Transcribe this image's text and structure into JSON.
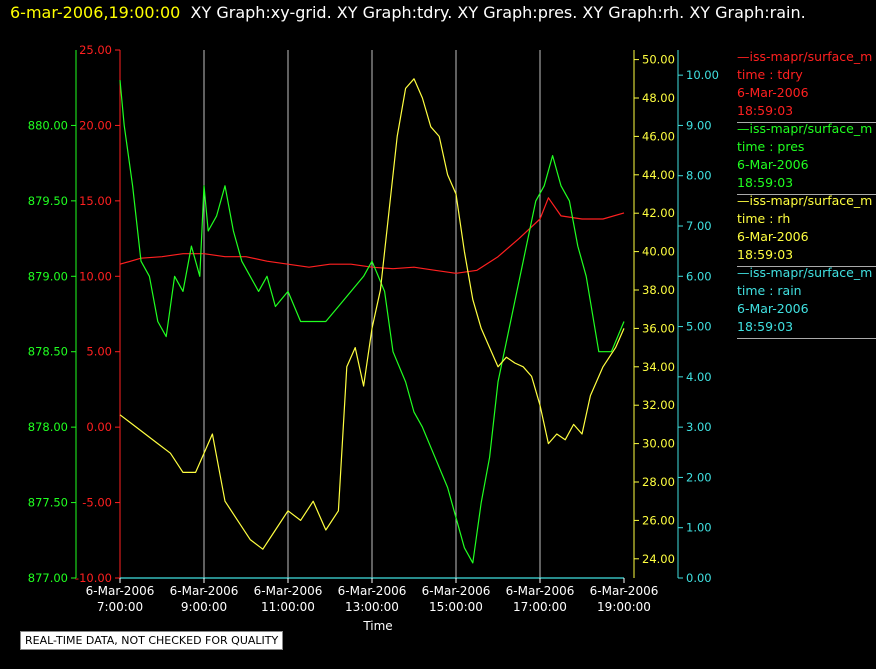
{
  "title": {
    "timestamp": "6-mar-2006,19:00:00",
    "graphs": "XY Graph:xy-grid.  XY Graph:tdry.  XY Graph:pres.  XY Graph:rh.  XY Graph:rain."
  },
  "legend": [
    {
      "name": "—iss-mapr/surface_m",
      "var": "time : tdry",
      "date": "6-Mar-2006",
      "time": "18:59:03",
      "color": "#ff2020"
    },
    {
      "name": "—iss-mapr/surface_m",
      "var": "time : pres",
      "date": "6-Mar-2006",
      "time": "18:59:03",
      "color": "#20ff20"
    },
    {
      "name": "—iss-mapr/surface_m",
      "var": "time : rh",
      "date": "6-Mar-2006",
      "time": "18:59:03",
      "color": "#ffff40"
    },
    {
      "name": "—iss-mapr/surface_m",
      "var": "time : rain",
      "date": "6-Mar-2006",
      "time": "18:59:03",
      "color": "#40e0e0"
    }
  ],
  "disclaimer": "REAL-TIME DATA, NOT CHECKED FOR QUALITY",
  "chart_data": {
    "type": "line",
    "xlabel": "Time",
    "x_ticks": [
      {
        "date": "6-Mar-2006",
        "time": "7:00:00",
        "hour": 7
      },
      {
        "date": "6-Mar-2006",
        "time": "9:00:00",
        "hour": 9
      },
      {
        "date": "6-Mar-2006",
        "time": "11:00:00",
        "hour": 11
      },
      {
        "date": "6-Mar-2006",
        "time": "13:00:00",
        "hour": 13
      },
      {
        "date": "6-Mar-2006",
        "time": "15:00:00",
        "hour": 15
      },
      {
        "date": "6-Mar-2006",
        "time": "17:00:00",
        "hour": 17
      },
      {
        "date": "6-Mar-2006",
        "time": "19:00:00",
        "hour": 19
      }
    ],
    "xlim": [
      7,
      19
    ],
    "grid": true,
    "axes": [
      {
        "id": "pres",
        "color": "#20ff20",
        "ylim": [
          877.0,
          880.5
        ],
        "ticks": [
          "877.00",
          "877.50",
          "878.00",
          "878.50",
          "879.00",
          "879.50",
          "880.00"
        ]
      },
      {
        "id": "tdry",
        "color": "#ff2020",
        "ylim": [
          -10,
          25
        ],
        "ticks": [
          "-10.00",
          "-5.00",
          "0.00",
          "5.00",
          "10.00",
          "15.00",
          "20.00",
          "25.00"
        ]
      },
      {
        "id": "rh",
        "color": "#ffff40",
        "ylim": [
          23,
          50.5
        ],
        "ticks": [
          "24.00",
          "26.00",
          "28.00",
          "30.00",
          "32.00",
          "34.00",
          "36.00",
          "38.00",
          "40.00",
          "42.00",
          "44.00",
          "46.00",
          "48.00",
          "50.00"
        ]
      },
      {
        "id": "rain",
        "color": "#40e0e0",
        "ylim": [
          0,
          10.5
        ],
        "ticks": [
          "0.00",
          "1.00",
          "2.00",
          "3.00",
          "4.00",
          "5.00",
          "6.00",
          "7.00",
          "8.00",
          "9.00",
          "10.00"
        ]
      }
    ],
    "series": [
      {
        "name": "tdry",
        "axis": "tdry",
        "color": "#ff2020",
        "x": [
          7.0,
          7.5,
          8.0,
          8.5,
          9.0,
          9.5,
          10.0,
          10.5,
          11.0,
          11.5,
          12.0,
          12.5,
          13.0,
          13.5,
          14.0,
          14.5,
          15.0,
          15.5,
          16.0,
          16.5,
          17.0,
          17.2,
          17.5,
          18.0,
          18.5,
          19.0
        ],
        "y": [
          10.8,
          11.2,
          11.3,
          11.5,
          11.5,
          11.3,
          11.3,
          11.0,
          10.8,
          10.6,
          10.8,
          10.8,
          10.6,
          10.5,
          10.6,
          10.4,
          10.2,
          10.4,
          11.3,
          12.5,
          13.8,
          15.2,
          14.0,
          13.8,
          13.8,
          14.2
        ]
      },
      {
        "name": "pres",
        "axis": "pres",
        "color": "#20ff20",
        "x": [
          7.0,
          7.1,
          7.3,
          7.5,
          7.7,
          7.9,
          8.1,
          8.3,
          8.5,
          8.7,
          8.9,
          9.0,
          9.1,
          9.3,
          9.5,
          9.7,
          9.9,
          10.1,
          10.3,
          10.5,
          10.7,
          11.0,
          11.3,
          11.6,
          11.9,
          12.2,
          12.5,
          12.8,
          13.0,
          13.3,
          13.5,
          13.8,
          14.0,
          14.2,
          14.5,
          14.8,
          15.0,
          15.2,
          15.4,
          15.6,
          15.8,
          16.0,
          16.3,
          16.6,
          16.9,
          17.1,
          17.3,
          17.5,
          17.7,
          17.9,
          18.1,
          18.4,
          18.7,
          19.0
        ],
        "y": [
          880.3,
          880.0,
          879.6,
          879.1,
          879.0,
          878.7,
          878.6,
          879.0,
          878.9,
          879.2,
          879.0,
          879.6,
          879.3,
          879.4,
          879.6,
          879.3,
          879.1,
          879.0,
          878.9,
          879.0,
          878.8,
          878.9,
          878.7,
          878.7,
          878.7,
          878.8,
          878.9,
          879.0,
          879.1,
          878.9,
          878.5,
          878.3,
          878.1,
          878.0,
          877.8,
          877.6,
          877.4,
          877.2,
          877.1,
          877.5,
          877.8,
          878.3,
          878.7,
          879.1,
          879.5,
          879.6,
          879.8,
          879.6,
          879.5,
          879.2,
          879.0,
          878.5,
          878.5,
          878.7
        ]
      },
      {
        "name": "rh",
        "axis": "rh",
        "color": "#ffff40",
        "x": [
          7.0,
          7.3,
          7.6,
          7.9,
          8.2,
          8.5,
          8.8,
          9.0,
          9.2,
          9.5,
          9.8,
          10.1,
          10.4,
          10.7,
          11.0,
          11.3,
          11.6,
          11.9,
          12.2,
          12.4,
          12.6,
          12.8,
          13.0,
          13.2,
          13.4,
          13.6,
          13.8,
          14.0,
          14.2,
          14.4,
          14.6,
          14.8,
          15.0,
          15.2,
          15.4,
          15.6,
          15.8,
          16.0,
          16.2,
          16.4,
          16.6,
          16.8,
          17.0,
          17.2,
          17.4,
          17.6,
          17.8,
          18.0,
          18.2,
          18.5,
          18.8,
          19.0
        ],
        "y": [
          31.5,
          31.0,
          30.5,
          30.0,
          29.5,
          28.5,
          28.5,
          29.5,
          30.5,
          27.0,
          26.0,
          25.0,
          24.5,
          25.5,
          26.5,
          26.0,
          27.0,
          25.5,
          26.5,
          34.0,
          35.0,
          33.0,
          36.0,
          38.0,
          42.0,
          46.0,
          48.5,
          49.0,
          48.0,
          46.5,
          46.0,
          44.0,
          43.0,
          40.0,
          37.5,
          36.0,
          35.0,
          34.0,
          34.5,
          34.2,
          34.0,
          33.5,
          32.0,
          30.0,
          30.5,
          30.2,
          31.0,
          30.5,
          32.5,
          34.0,
          35.0,
          36.0
        ]
      },
      {
        "name": "rain",
        "axis": "rain",
        "color": "#40e0e0",
        "x": [
          7.0,
          19.0
        ],
        "y": [
          0.0,
          0.0
        ]
      }
    ]
  }
}
